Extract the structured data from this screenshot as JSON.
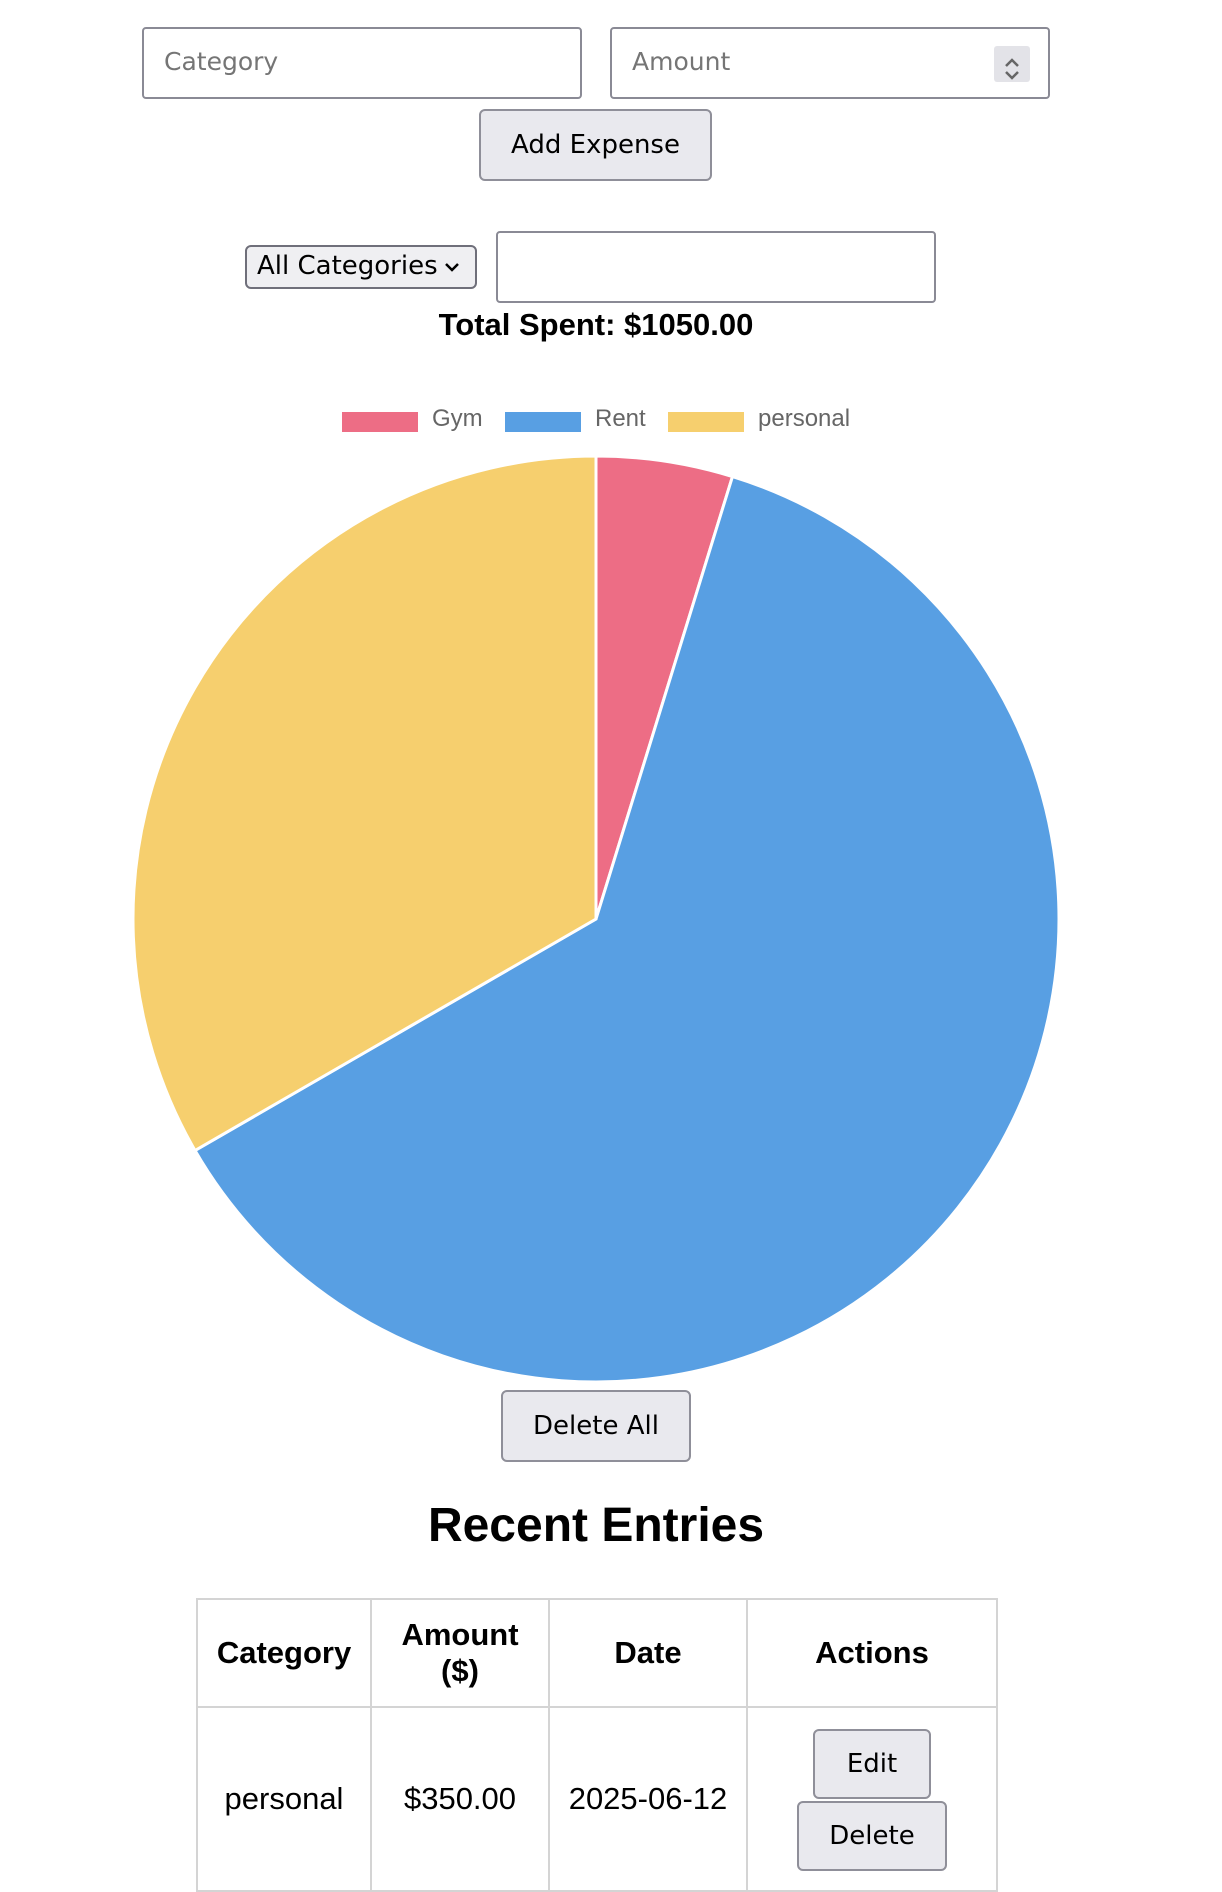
{
  "form": {
    "category_placeholder": "Category",
    "amount_placeholder": "Amount",
    "add_button": "Add Expense"
  },
  "filter": {
    "selected_category": "All Categories",
    "search_value": ""
  },
  "summary": {
    "total_label": "Total Spent: $1050.00"
  },
  "chart_data": {
    "type": "pie",
    "labels": [
      "Gym",
      "Rent",
      "personal"
    ],
    "values": [
      50,
      650,
      350
    ],
    "colors": [
      "#ED6D85",
      "#589FE3",
      "#F6CF6E"
    ],
    "legend_position": "top"
  },
  "actions": {
    "delete_all": "Delete All"
  },
  "entries": {
    "title": "Recent Entries",
    "headers": [
      "Category",
      "Amount ($)",
      "Date",
      "Actions"
    ],
    "rows": [
      {
        "category": "personal",
        "amount": "$350.00",
        "date": "2025-06-12",
        "edit": "Edit",
        "delete": "Delete"
      }
    ]
  }
}
